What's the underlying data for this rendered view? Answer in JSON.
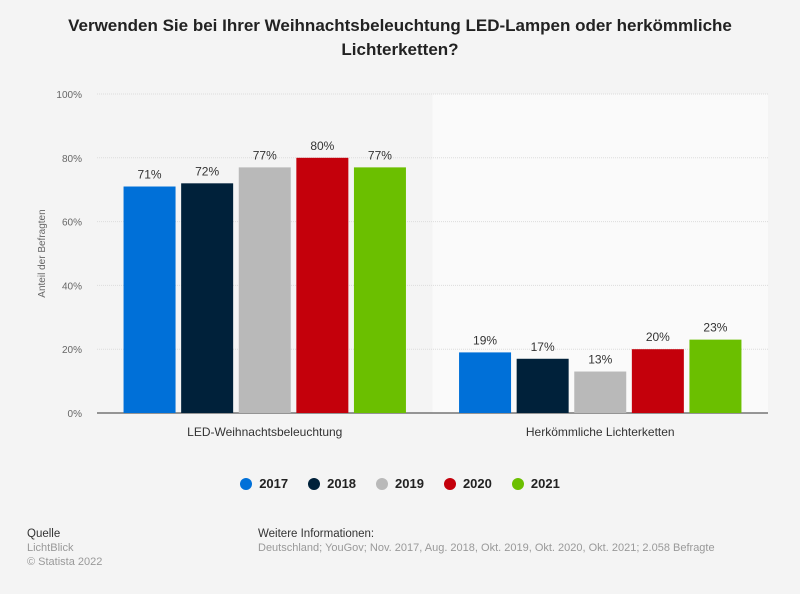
{
  "chart_data": {
    "type": "bar",
    "title": "Verwenden Sie bei Ihrer Weihnachtsbeleuchtung LED-Lampen oder herkömmliche Lichterketten?",
    "ylabel": "Anteil der Befragten",
    "ylim": [
      0,
      100
    ],
    "yticks": [
      "0%",
      "20%",
      "40%",
      "60%",
      "80%",
      "100%"
    ],
    "categories": [
      "LED-Weihnachtsbeleuchtung",
      "Herkömmliche Lichterketten"
    ],
    "series": [
      {
        "name": "2017",
        "color": "#0070d8",
        "values": [
          71,
          19
        ]
      },
      {
        "name": "2018",
        "color": "#00213a",
        "values": [
          72,
          17
        ]
      },
      {
        "name": "2019",
        "color": "#b9b9b9",
        "values": [
          77,
          13
        ]
      },
      {
        "name": "2020",
        "color": "#c4000b",
        "values": [
          80,
          20
        ]
      },
      {
        "name": "2021",
        "color": "#6bbf00",
        "values": [
          77,
          23
        ]
      }
    ],
    "grid": true,
    "legend": "bottom",
    "value_suffix": "%"
  },
  "footer": {
    "source_label": "Quelle",
    "source": "LichtBlick",
    "copyright": "© Statista 2022",
    "info_label": "Weitere Informationen:",
    "info": "Deutschland; YouGov; Nov. 2017, Aug. 2018, Okt. 2019, Okt. 2020, Okt. 2021; 2.058 Befragte"
  }
}
